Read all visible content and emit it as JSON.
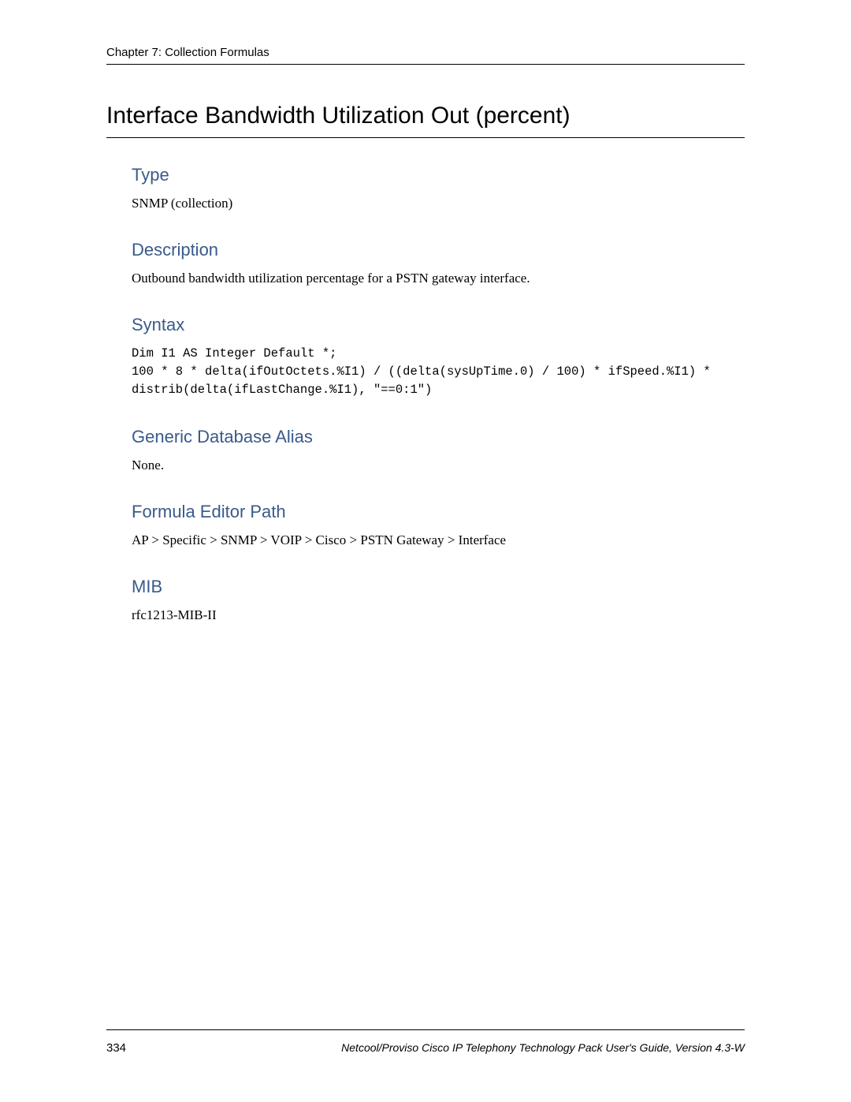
{
  "header": {
    "chapter": "Chapter 7: Collection Formulas"
  },
  "title": "Interface Bandwidth Utilization Out (percent)",
  "sections": {
    "type": {
      "heading": "Type",
      "body": "SNMP (collection)"
    },
    "description": {
      "heading": "Description",
      "body": "Outbound bandwidth utilization percentage for a PSTN gateway interface."
    },
    "syntax": {
      "heading": "Syntax",
      "code": "Dim I1 AS Integer Default *;\n100 * 8 * delta(ifOutOctets.%I1) / ((delta(sysUpTime.0) / 100) * ifSpeed.%I1) * distrib(delta(ifLastChange.%I1), \"==0:1\")"
    },
    "alias": {
      "heading": "Generic Database Alias",
      "body": "None."
    },
    "path": {
      "heading": "Formula Editor Path",
      "body": "AP > Specific > SNMP > VOIP > Cisco > PSTN Gateway > Interface"
    },
    "mib": {
      "heading": "MIB",
      "body": "rfc1213-MIB-II"
    }
  },
  "footer": {
    "page_number": "334",
    "guide": "Netcool/Proviso Cisco IP Telephony Technology Pack User's Guide, Version 4.3-W"
  },
  "colors": {
    "heading_blue": "#3a5a8a",
    "text": "#000000",
    "background": "#ffffff",
    "rule": "#000000"
  },
  "typography": {
    "chapter_fontsize": 15,
    "title_fontsize": 30,
    "section_heading_fontsize": 22,
    "body_fontsize": 17,
    "code_fontsize": 15.5,
    "footer_fontsize_num": 15,
    "footer_fontsize_guide": 14
  }
}
